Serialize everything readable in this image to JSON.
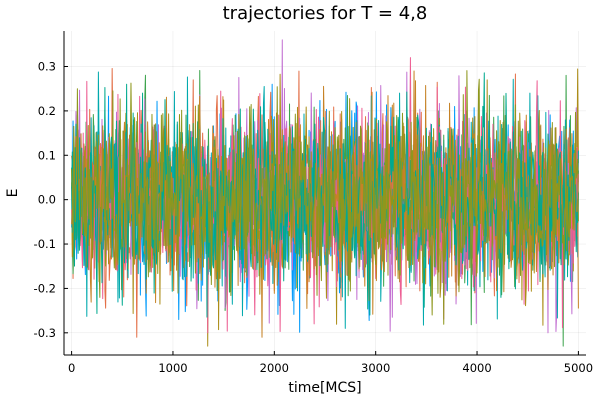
{
  "chart_data": {
    "type": "line",
    "title": "trajectories for T = 4,8",
    "xlabel": "time[MCS]",
    "ylabel": "E",
    "xlim": [
      -75,
      5075
    ],
    "ylim": [
      -0.35,
      0.38
    ],
    "x_ticks": [
      0,
      1000,
      2000,
      3000,
      4000,
      5000
    ],
    "x_tick_labels": [
      "0",
      "1000",
      "2000",
      "3000",
      "4000",
      "5000"
    ],
    "y_ticks": [
      -0.3,
      -0.2,
      -0.1,
      0.0,
      0.1,
      0.2,
      0.3
    ],
    "y_tick_labels": [
      "-0.3",
      "-0.2",
      "-0.1",
      "0.0",
      "0.1",
      "0.2",
      "0.3"
    ],
    "grid": true,
    "legend": "none",
    "x_start": 0,
    "x_end": 5000,
    "series": [
      {
        "color": "#009AFA",
        "mean": 0.0,
        "std": 0.095,
        "extremes": [
          {
            "x": 2810,
            "y": 0.22
          },
          {
            "x": 1060,
            "y": -0.27
          }
        ]
      },
      {
        "color": "#E36F47",
        "mean": 0.0,
        "std": 0.095,
        "extremes": [
          {
            "x": 1200,
            "y": 0.27
          },
          {
            "x": 640,
            "y": -0.31
          }
        ]
      },
      {
        "color": "#3EA44E",
        "mean": 0.0,
        "std": 0.095,
        "extremes": [
          {
            "x": 4880,
            "y": 0.28
          },
          {
            "x": 4850,
            "y": -0.33
          }
        ]
      },
      {
        "color": "#C371D2",
        "mean": 0.0,
        "std": 0.095,
        "extremes": [
          {
            "x": 2080,
            "y": 0.36
          },
          {
            "x": 4700,
            "y": -0.3
          }
        ]
      },
      {
        "color": "#AC8D18",
        "mean": 0.0,
        "std": 0.095,
        "extremes": [
          {
            "x": 4100,
            "y": 0.27
          },
          {
            "x": 1340,
            "y": -0.33
          }
        ]
      },
      {
        "color": "#00A9AD",
        "mean": 0.0,
        "std": 0.095,
        "extremes": [
          {
            "x": 4520,
            "y": 0.24
          },
          {
            "x": 2700,
            "y": -0.29
          }
        ]
      },
      {
        "color": "#ED5E93",
        "mean": 0.0,
        "std": 0.095,
        "extremes": [
          {
            "x": 3340,
            "y": 0.32
          },
          {
            "x": 2390,
            "y": -0.28
          }
        ]
      },
      {
        "color": "#C68225",
        "mean": 0.0,
        "std": 0.095,
        "extremes": [
          {
            "x": 3380,
            "y": 0.29
          },
          {
            "x": 1880,
            "y": -0.31
          }
        ]
      },
      {
        "color": "#00A98E",
        "mean": 0.0,
        "std": 0.095,
        "extremes": [
          {
            "x": 700,
            "y": 0.24
          },
          {
            "x": 2940,
            "y": -0.26
          }
        ]
      },
      {
        "color": "#8E971D",
        "mean": 0.0,
        "std": 0.095,
        "extremes": [
          {
            "x": 60,
            "y": 0.25
          },
          {
            "x": 3560,
            "y": -0.26
          }
        ]
      }
    ]
  }
}
